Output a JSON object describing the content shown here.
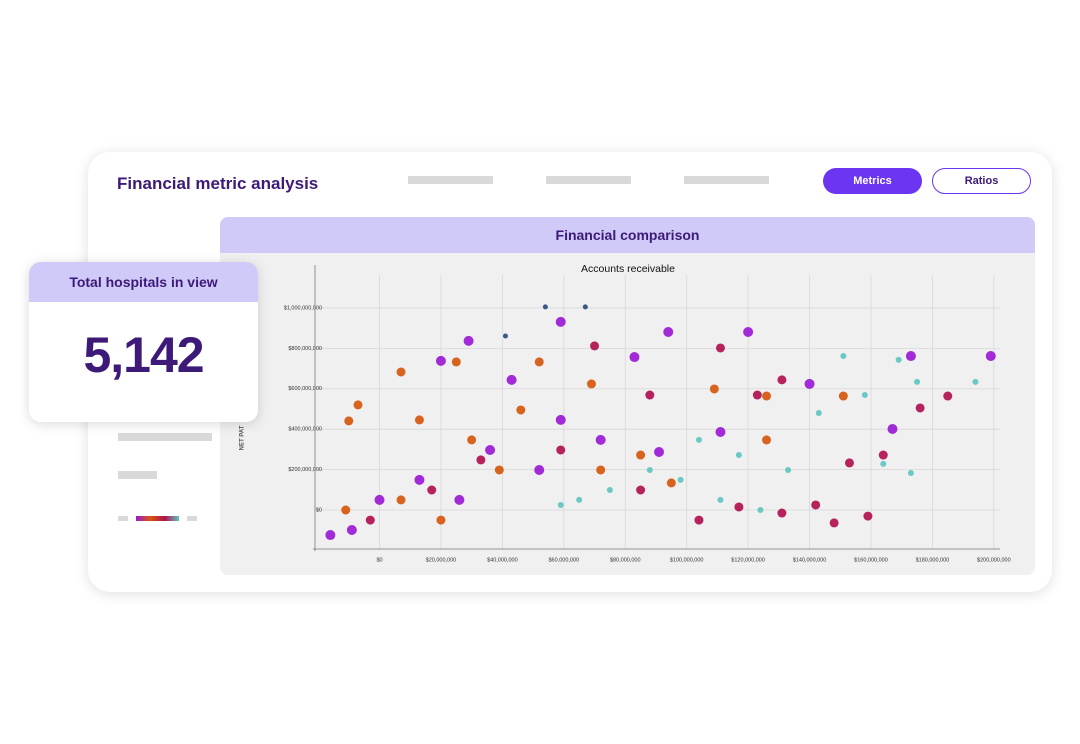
{
  "header": {
    "title": "Financial metric analysis",
    "buttons": [
      "Metrics",
      "Ratios"
    ]
  },
  "summary_card": {
    "title": "Total hospitals in view",
    "value": "5,142"
  },
  "panel": {
    "title": "Financial comparison"
  },
  "chart_data": {
    "type": "scatter",
    "title": "Accounts receivable",
    "y_label": "NET PAT",
    "xlim": [
      -21000000,
      202000000
    ],
    "ylim": [
      -193000000,
      1163000000
    ],
    "grid": true,
    "xticks": [
      {
        "value": 0,
        "label": "$0"
      },
      {
        "value": 20000000,
        "label": "$20,000,000"
      },
      {
        "value": 40000000,
        "label": "$40,000,000"
      },
      {
        "value": 60000000,
        "label": "$60,000,000"
      },
      {
        "value": 80000000,
        "label": "$80,000,000"
      },
      {
        "value": 100000000,
        "label": "$100,000,000"
      },
      {
        "value": 120000000,
        "label": "$120,000,000"
      },
      {
        "value": 140000000,
        "label": "$140,000,000"
      },
      {
        "value": 160000000,
        "label": "$160,000,000"
      },
      {
        "value": 180000000,
        "label": "$180,000,000"
      },
      {
        "value": 200000000,
        "label": "$200,000,000"
      }
    ],
    "yticks": [
      {
        "value": 0,
        "label": "$0"
      },
      {
        "value": 200000000,
        "label": "$200,000,000"
      },
      {
        "value": 400000000,
        "label": "$400,000,000"
      },
      {
        "value": 600000000,
        "label": "$600,000,000"
      },
      {
        "value": 800000000,
        "label": "$800,000,000"
      },
      {
        "value": 1000000000,
        "label": "$1,000,000,000"
      }
    ],
    "series": [
      {
        "color": "#5ec4c1",
        "marker_size": 3,
        "x": [
          151000000,
          175000000,
          194000000,
          173000000,
          164000000,
          143000000,
          133000000,
          117000000,
          104000000,
          88000000,
          75000000,
          65000000,
          124000000,
          158000000,
          169000000,
          98000000,
          59000000,
          111000000
        ],
        "values": [
          762000000,
          634000000,
          634000000,
          183000000,
          228000000,
          480000000,
          198000000,
          272000000,
          347000000,
          198000000,
          99000000,
          50000000,
          0,
          569000000,
          743000000,
          149000000,
          25000000,
          50000000
        ]
      },
      {
        "color": "#9a1ad4",
        "marker_size": 5,
        "x": [
          199000000,
          173000000,
          120000000,
          94000000,
          83000000,
          59000000,
          29000000,
          20000000,
          43000000,
          59000000,
          36000000,
          13000000,
          0,
          -9000000,
          72000000,
          91000000,
          111000000,
          140000000,
          167000000,
          52000000,
          26000000,
          -16000000
        ],
        "values": [
          762000000,
          762000000,
          881000000,
          881000000,
          757000000,
          931000000,
          837000000,
          738000000,
          644000000,
          446000000,
          297000000,
          149000000,
          50000000,
          -99000000,
          347000000,
          287000000,
          386000000,
          624000000,
          401000000,
          198000000,
          50000000,
          -124000000
        ]
      },
      {
        "color": "#d6570c",
        "marker_size": 4.5,
        "x": [
          151000000,
          126000000,
          109000000,
          52000000,
          25000000,
          7000000,
          -7000000,
          -10000000,
          13000000,
          30000000,
          46000000,
          69000000,
          85000000,
          95000000,
          39000000,
          7000000,
          20000000,
          -11000000,
          72000000,
          126000000
        ],
        "values": [
          564000000,
          564000000,
          599000000,
          733000000,
          733000000,
          683000000,
          520000000,
          441000000,
          446000000,
          347000000,
          495000000,
          624000000,
          272000000,
          134000000,
          198000000,
          50000000,
          -50000000,
          0,
          198000000,
          347000000
        ]
      },
      {
        "color": "#b0104f",
        "marker_size": 4.5,
        "x": [
          176000000,
          185000000,
          164000000,
          153000000,
          148000000,
          159000000,
          142000000,
          131000000,
          111000000,
          70000000,
          131000000,
          123000000,
          117000000,
          104000000,
          85000000,
          59000000,
          33000000,
          17000000,
          -3000000,
          88000000
        ],
        "values": [
          505000000,
          564000000,
          272000000,
          233000000,
          -64000000,
          -30000000,
          25000000,
          -15000000,
          802000000,
          812000000,
          644000000,
          569000000,
          15000000,
          -50000000,
          99000000,
          297000000,
          248000000,
          99000000,
          -50000000,
          569000000
        ]
      },
      {
        "color": "#2a4d7c",
        "marker_size": 2.5,
        "x": [
          54000000,
          67000000,
          41000000
        ],
        "values": [
          1005000000,
          1005000000,
          861000000
        ]
      }
    ]
  }
}
